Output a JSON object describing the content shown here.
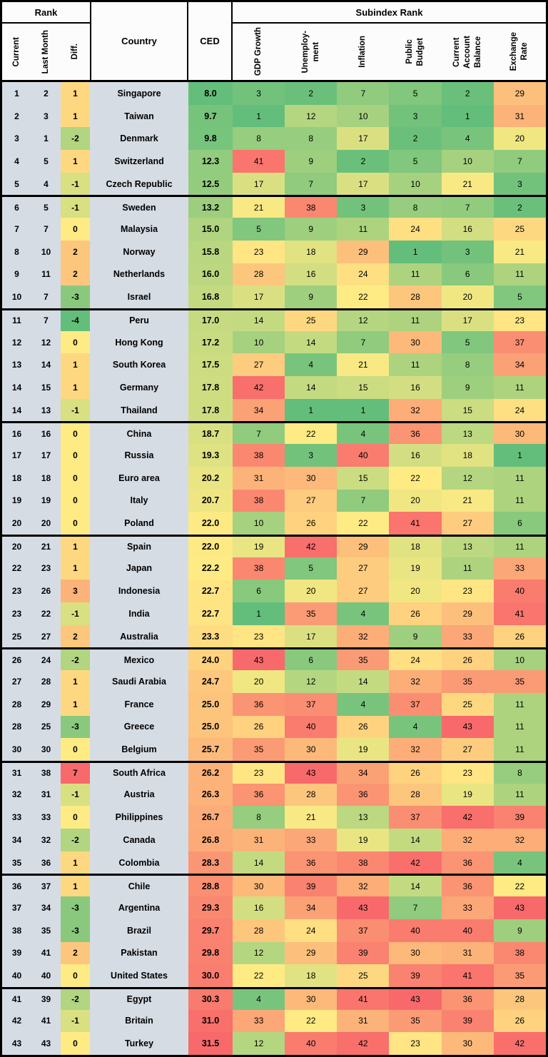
{
  "header": {
    "rank_group": "Rank",
    "rank_cols": [
      "Current",
      "Last Month",
      "Diff."
    ],
    "country": "Country",
    "ced": "CED",
    "subindex_group": "Subindex Rank",
    "subindex_cols": [
      "GDP Growth",
      "Unemploy-\nment",
      "Inflation",
      "Public\nBudget",
      "Current\nAccount\nBalance",
      "Exchange\nRate"
    ]
  },
  "style_colors": {
    "row_label_bg": "#D6DCE4",
    "header_bg": "#FCFCFC",
    "border": "#000000"
  },
  "chart_data": {
    "type": "heatmap",
    "title": "Country CED ranking with subindex ranks",
    "columns": [
      "Rank Current",
      "Rank Last Month",
      "Rank Diff.",
      "Country",
      "CED",
      "GDP Growth",
      "Unemployment",
      "Inflation",
      "Public Budget",
      "Current Account Balance",
      "Exchange Rate"
    ],
    "rows": [
      [
        1,
        2,
        1,
        "Singapore",
        8.0,
        3,
        2,
        7,
        5,
        2,
        29
      ],
      [
        2,
        3,
        1,
        "Taiwan",
        9.7,
        1,
        12,
        10,
        3,
        1,
        31
      ],
      [
        3,
        1,
        -2,
        "Denmark",
        9.8,
        8,
        8,
        17,
        2,
        4,
        20
      ],
      [
        4,
        5,
        1,
        "Switzerland",
        12.3,
        41,
        9,
        2,
        5,
        10,
        7
      ],
      [
        5,
        4,
        -1,
        "Czech Republic",
        12.5,
        17,
        7,
        17,
        10,
        21,
        3
      ],
      [
        6,
        5,
        -1,
        "Sweden",
        13.2,
        21,
        38,
        3,
        8,
        7,
        2
      ],
      [
        7,
        7,
        0,
        "Malaysia",
        15.0,
        5,
        9,
        11,
        24,
        16,
        25
      ],
      [
        8,
        10,
        2,
        "Norway",
        15.8,
        23,
        18,
        29,
        1,
        3,
        21
      ],
      [
        9,
        11,
        2,
        "Netherlands",
        16.0,
        28,
        16,
        24,
        11,
        6,
        11
      ],
      [
        10,
        7,
        -3,
        "Israel",
        16.8,
        17,
        9,
        22,
        28,
        20,
        5
      ],
      [
        11,
        7,
        -4,
        "Peru",
        17.0,
        14,
        25,
        12,
        11,
        17,
        23
      ],
      [
        12,
        12,
        0,
        "Hong Kong",
        17.2,
        10,
        14,
        7,
        30,
        5,
        37
      ],
      [
        13,
        14,
        1,
        "South Korea",
        17.5,
        27,
        4,
        21,
        11,
        8,
        34
      ],
      [
        14,
        15,
        1,
        "Germany",
        17.8,
        42,
        14,
        15,
        16,
        9,
        11
      ],
      [
        14,
        13,
        -1,
        "Thailand",
        17.8,
        34,
        1,
        1,
        32,
        15,
        24
      ],
      [
        16,
        16,
        0,
        "China",
        18.7,
        7,
        22,
        4,
        36,
        13,
        30
      ],
      [
        17,
        17,
        0,
        "Russia",
        19.3,
        38,
        3,
        40,
        16,
        18,
        1
      ],
      [
        18,
        18,
        0,
        "Euro area",
        20.2,
        31,
        30,
        15,
        22,
        12,
        11
      ],
      [
        19,
        19,
        0,
        "Italy",
        20.7,
        38,
        27,
        7,
        20,
        21,
        11
      ],
      [
        20,
        20,
        0,
        "Poland",
        22.0,
        10,
        26,
        22,
        41,
        27,
        6
      ],
      [
        20,
        21,
        1,
        "Spain",
        22.0,
        19,
        42,
        29,
        18,
        13,
        11
      ],
      [
        22,
        23,
        1,
        "Japan",
        22.2,
        38,
        5,
        27,
        19,
        11,
        33
      ],
      [
        23,
        26,
        3,
        "Indonesia",
        22.7,
        6,
        20,
        27,
        20,
        23,
        40
      ],
      [
        23,
        22,
        -1,
        "India",
        22.7,
        1,
        35,
        4,
        26,
        29,
        41
      ],
      [
        25,
        27,
        2,
        "Australia",
        23.3,
        23,
        17,
        32,
        9,
        33,
        26
      ],
      [
        26,
        24,
        -2,
        "Mexico",
        24.0,
        43,
        6,
        35,
        24,
        26,
        10
      ],
      [
        27,
        28,
        1,
        "Saudi Arabia",
        24.7,
        20,
        12,
        14,
        32,
        35,
        35
      ],
      [
        28,
        29,
        1,
        "France",
        25.0,
        36,
        37,
        4,
        37,
        25,
        11
      ],
      [
        28,
        25,
        -3,
        "Greece",
        25.0,
        26,
        40,
        26,
        4,
        43,
        11
      ],
      [
        30,
        30,
        0,
        "Belgium",
        25.7,
        35,
        30,
        19,
        32,
        27,
        11
      ],
      [
        31,
        38,
        7,
        "South Africa",
        26.2,
        23,
        43,
        34,
        26,
        23,
        8
      ],
      [
        32,
        31,
        -1,
        "Austria",
        26.3,
        36,
        28,
        36,
        28,
        19,
        11
      ],
      [
        33,
        33,
        0,
        "Philippines",
        26.7,
        8,
        21,
        13,
        37,
        42,
        39
      ],
      [
        34,
        32,
        -2,
        "Canada",
        26.8,
        31,
        33,
        19,
        14,
        32,
        32
      ],
      [
        35,
        36,
        1,
        "Colombia",
        28.3,
        14,
        36,
        38,
        42,
        36,
        4
      ],
      [
        36,
        37,
        1,
        "Chile",
        28.8,
        30,
        39,
        32,
        14,
        36,
        22
      ],
      [
        37,
        34,
        -3,
        "Argentina",
        29.3,
        16,
        34,
        43,
        7,
        33,
        43
      ],
      [
        38,
        35,
        -3,
        "Brazil",
        29.7,
        28,
        24,
        37,
        40,
        40,
        9
      ],
      [
        39,
        41,
        2,
        "Pakistan",
        29.8,
        12,
        29,
        39,
        30,
        31,
        38
      ],
      [
        40,
        40,
        0,
        "United States",
        30.0,
        22,
        18,
        25,
        39,
        41,
        35
      ],
      [
        41,
        39,
        -2,
        "Egypt",
        30.3,
        4,
        30,
        41,
        43,
        36,
        28
      ],
      [
        42,
        41,
        -1,
        "Britain",
        31.0,
        33,
        22,
        31,
        35,
        39,
        26
      ],
      [
        43,
        43,
        0,
        "Turkey",
        31.5,
        12,
        40,
        42,
        23,
        30,
        42
      ]
    ],
    "group_size": 5,
    "color_scale": {
      "low_good": "#63BE7B",
      "mid": "#FFEB84",
      "high_bad": "#F8696B"
    },
    "domains": {
      "rank": {
        "min": 1,
        "mid": 22,
        "max": 43
      },
      "ced": {
        "min": 8.0,
        "mid": 22.2,
        "max": 31.5
      },
      "diff": {
        "min": -4,
        "mid": 0,
        "max": 7
      }
    }
  }
}
